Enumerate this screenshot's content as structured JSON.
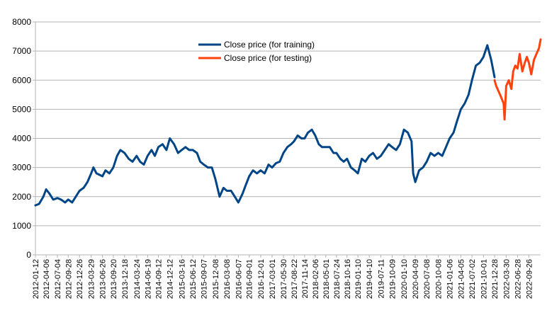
{
  "chart_data": {
    "type": "line",
    "title": "",
    "xlabel": "",
    "ylabel": "",
    "ylim": [
      0,
      8000
    ],
    "yticks": [
      0,
      1000,
      2000,
      3000,
      4000,
      5000,
      6000,
      7000,
      8000
    ],
    "grid": "horizontal",
    "legend_position": "top-center",
    "x_ticks": [
      "2012-01-12",
      "2012-04-06",
      "2012-07-04",
      "2012-09-28",
      "2012-12-26",
      "2013-03-29",
      "2013-06-26",
      "2013-09-20",
      "2013-12-18",
      "2014-03-24",
      "2014-06-19",
      "2014-09-12",
      "2014-12-12",
      "2015-03-16",
      "2015-06-12",
      "2015-09-07",
      "2015-12-08",
      "2016-03-08",
      "2016-06-07",
      "2016-09-01",
      "2016-12-01",
      "2017-03-01",
      "2017-05-30",
      "2017-08-22",
      "2017-11-14",
      "2018-02-06",
      "2018-05-01",
      "2018-07-24",
      "2018-10-16",
      "2019-01-10",
      "2019-04-10",
      "2019-07-11",
      "2019-10-09",
      "2020-01-10",
      "2020-04-09",
      "2020-07-08",
      "2020-10-08",
      "2021-01-06",
      "2021-04-05",
      "2021-07-02",
      "2021-10-01",
      "2021-12-28",
      "2022-03-30",
      "2022-06-28",
      "2022-09-26"
    ],
    "series": [
      {
        "name": "Close price (for training)",
        "color": "#004586",
        "x": [
          "2012-01-12",
          "2012-02-10",
          "2012-03-15",
          "2012-04-06",
          "2012-05-02",
          "2012-06-01",
          "2012-07-04",
          "2012-08-01",
          "2012-09-03",
          "2012-09-28",
          "2012-10-29",
          "2012-11-27",
          "2012-12-26",
          "2013-01-28",
          "2013-02-27",
          "2013-03-29",
          "2013-04-15",
          "2013-05-10",
          "2013-06-26",
          "2013-07-20",
          "2013-08-20",
          "2013-09-20",
          "2013-10-20",
          "2013-11-15",
          "2013-12-18",
          "2014-01-20",
          "2014-02-20",
          "2014-03-24",
          "2014-04-20",
          "2014-05-20",
          "2014-06-19",
          "2014-07-20",
          "2014-08-15",
          "2014-09-12",
          "2014-10-15",
          "2014-11-15",
          "2014-12-12",
          "2015-01-15",
          "2015-02-15",
          "2015-03-16",
          "2015-04-15",
          "2015-05-15",
          "2015-06-12",
          "2015-07-15",
          "2015-08-10",
          "2015-09-07",
          "2015-10-10",
          "2015-11-10",
          "2015-12-08",
          "2016-01-10",
          "2016-02-10",
          "2016-03-08",
          "2016-04-10",
          "2016-05-10",
          "2016-06-07",
          "2016-07-10",
          "2016-08-05",
          "2016-09-01",
          "2016-10-01",
          "2016-11-01",
          "2016-12-01",
          "2017-01-01",
          "2017-02-01",
          "2017-03-01",
          "2017-04-01",
          "2017-05-01",
          "2017-05-30",
          "2017-06-30",
          "2017-07-30",
          "2017-08-22",
          "2017-09-20",
          "2017-10-20",
          "2017-11-14",
          "2017-12-10",
          "2018-01-10",
          "2018-02-06",
          "2018-03-06",
          "2018-04-01",
          "2018-05-01",
          "2018-06-01",
          "2018-07-01",
          "2018-07-24",
          "2018-08-24",
          "2018-09-20",
          "2018-10-16",
          "2018-11-16",
          "2018-12-16",
          "2019-01-10",
          "2019-02-10",
          "2019-03-10",
          "2019-04-10",
          "2019-05-10",
          "2019-06-10",
          "2019-07-11",
          "2019-08-11",
          "2019-09-11",
          "2019-10-09",
          "2019-11-09",
          "2019-12-09",
          "2020-01-10",
          "2020-02-10",
          "2020-03-10",
          "2020-03-23",
          "2020-04-09",
          "2020-05-09",
          "2020-06-09",
          "2020-07-08",
          "2020-08-08",
          "2020-09-08",
          "2020-10-08",
          "2020-11-08",
          "2020-12-08",
          "2021-01-06",
          "2021-02-06",
          "2021-03-06",
          "2021-04-05",
          "2021-05-05",
          "2021-06-05",
          "2021-07-02",
          "2021-08-02",
          "2021-09-02",
          "2021-10-01",
          "2021-11-01",
          "2021-12-01",
          "2021-12-28"
        ],
        "values": [
          1700,
          1750,
          2000,
          2250,
          2100,
          1900,
          1950,
          1900,
          1800,
          1900,
          1800,
          2000,
          2200,
          2300,
          2500,
          2800,
          3000,
          2800,
          2700,
          2900,
          2800,
          3000,
          3400,
          3600,
          3500,
          3300,
          3200,
          3400,
          3200,
          3100,
          3400,
          3600,
          3400,
          3700,
          3800,
          3600,
          4000,
          3800,
          3500,
          3600,
          3700,
          3600,
          3600,
          3500,
          3200,
          3100,
          3000,
          3000,
          2600,
          2000,
          2300,
          2200,
          2200,
          2000,
          1800,
          2100,
          2400,
          2700,
          2900,
          2800,
          2900,
          2800,
          3100,
          3000,
          3150,
          3200,
          3500,
          3700,
          3800,
          3900,
          4100,
          4000,
          4000,
          4200,
          4300,
          4100,
          3800,
          3700,
          3700,
          3700,
          3500,
          3500,
          3300,
          3200,
          3300,
          3000,
          2900,
          2800,
          3300,
          3200,
          3400,
          3500,
          3300,
          3400,
          3600,
          3800,
          3700,
          3600,
          3800,
          4300,
          4200,
          3900,
          2800,
          2500,
          2900,
          3000,
          3200,
          3500,
          3400,
          3500,
          3400,
          3700,
          4000,
          4200,
          4600,
          5000,
          5200,
          5500,
          6000,
          6500,
          6600,
          6800,
          7200,
          6700,
          6100
        ]
      },
      {
        "name": "Close price (for testing)",
        "color": "#ff420e",
        "x": [
          "2021-12-28",
          "2022-01-10",
          "2022-02-10",
          "2022-03-10",
          "2022-03-17",
          "2022-03-30",
          "2022-04-20",
          "2022-05-10",
          "2022-05-25",
          "2022-06-10",
          "2022-06-28",
          "2022-07-15",
          "2022-08-05",
          "2022-08-25",
          "2022-09-10",
          "2022-09-26",
          "2022-10-15",
          "2022-11-05",
          "2022-11-25",
          "2022-12-15",
          "2022-12-28"
        ],
        "values": [
          6000,
          5800,
          5500,
          5200,
          4650,
          5800,
          6000,
          5700,
          6300,
          6500,
          6400,
          6900,
          6300,
          6600,
          6800,
          6600,
          6200,
          6700,
          6900,
          7100,
          7400
        ]
      }
    ]
  }
}
